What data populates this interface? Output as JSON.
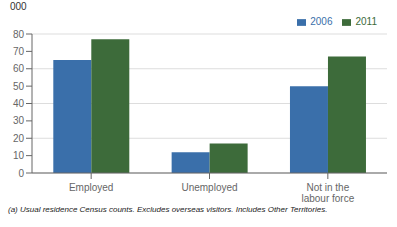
{
  "chart_data": {
    "type": "bar",
    "categories": [
      "Employed",
      "Unemployed",
      "Not in the\nlabour force"
    ],
    "series": [
      {
        "name": "2006",
        "color": "#3a6faa",
        "values": [
          65,
          12,
          50
        ]
      },
      {
        "name": "2011",
        "color": "#3d6b3a",
        "values": [
          77,
          17,
          67
        ]
      }
    ],
    "ylabel": "000",
    "ylim": [
      0,
      80
    ],
    "yticks": [
      0,
      10,
      20,
      30,
      40,
      50,
      60,
      70,
      80
    ],
    "grid": true,
    "legend": "upper right",
    "footnote": "(a) Usual residence Census counts.  Excludes overseas visitors.  Includes Other Territories."
  }
}
